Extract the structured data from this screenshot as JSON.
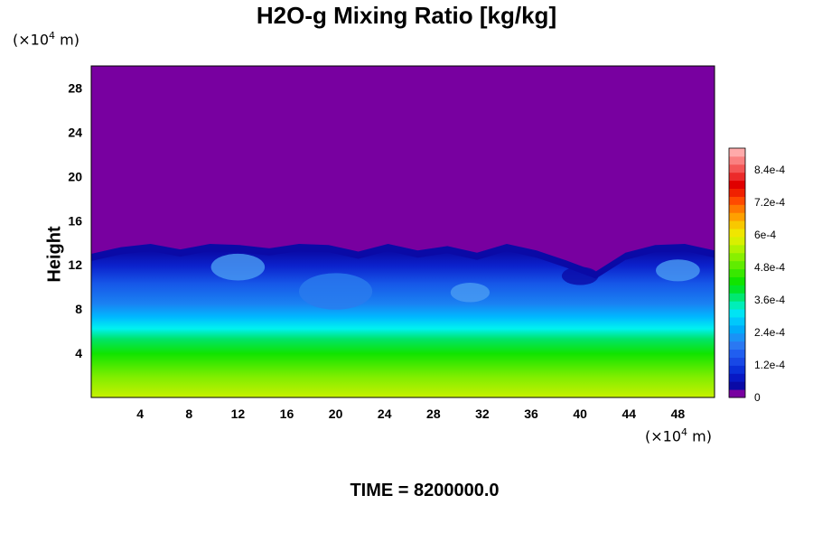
{
  "chart_data": {
    "type": "heatmap",
    "title": "H2O-g Mixing Ratio [kg/kg]",
    "ylabel": "Height",
    "y_unit": {
      "base": "(×10",
      "exp": "4",
      "rest": " m)"
    },
    "x_unit": {
      "base": "(×10",
      "exp": "4",
      "rest": " m)"
    },
    "x_ticks": [
      4,
      8,
      12,
      16,
      20,
      24,
      28,
      32,
      36,
      40,
      44,
      48
    ],
    "y_ticks": [
      4,
      8,
      12,
      16,
      20,
      24,
      28
    ],
    "xlim": [
      0,
      51
    ],
    "ylim": [
      0,
      30
    ],
    "colorbar": {
      "ticks": [
        "0",
        "1.2e-4",
        "2.4e-4",
        "3.6e-4",
        "4.8e-4",
        "6e-4",
        "7.2e-4",
        "8.4e-4"
      ],
      "tick_values": [
        0,
        0.00012,
        0.00024,
        0.00036,
        0.00048,
        0.0006,
        0.00072,
        0.00084
      ],
      "range": [
        0,
        0.00092
      ]
    },
    "field_summary": {
      "dry_layer_value": 0,
      "moist_top_height": 13,
      "surface_value": 0.00066
    },
    "time_label": "TIME = 8200000.0"
  }
}
